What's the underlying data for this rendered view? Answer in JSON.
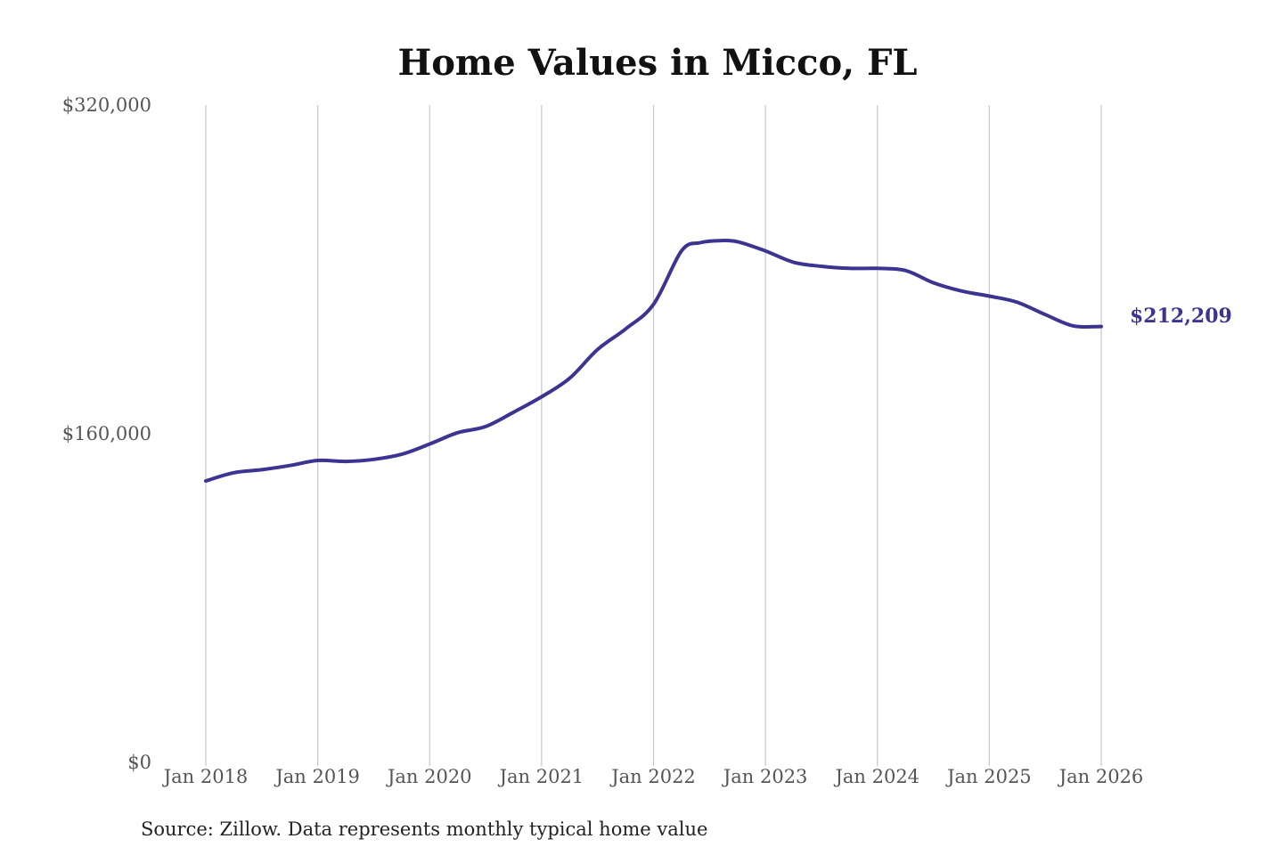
{
  "chart_data": {
    "type": "line",
    "title": "Home Values in Micco, FL",
    "source": "Source: Zillow. Data represents monthly typical home value",
    "end_label": "$212,209",
    "line_color": "#3b3491",
    "grid": "vertical",
    "ylim": [
      0,
      320000
    ],
    "y_ticks": [
      {
        "value": 0,
        "label": "$0"
      },
      {
        "value": 160000,
        "label": "$160,000"
      },
      {
        "value": 320000,
        "label": "$320,000"
      }
    ],
    "xlim": [
      "2018-01",
      "2026-01"
    ],
    "x_ticks": [
      {
        "date": "2018-01",
        "label": "Jan 2018"
      },
      {
        "date": "2019-01",
        "label": "Jan 2019"
      },
      {
        "date": "2020-01",
        "label": "Jan 2020"
      },
      {
        "date": "2021-01",
        "label": "Jan 2021"
      },
      {
        "date": "2022-01",
        "label": "Jan 2022"
      },
      {
        "date": "2023-01",
        "label": "Jan 2023"
      },
      {
        "date": "2024-01",
        "label": "Jan 2024"
      },
      {
        "date": "2025-01",
        "label": "Jan 2025"
      },
      {
        "date": "2026-01",
        "label": "Jan 2026"
      }
    ],
    "series": [
      {
        "points": [
          {
            "x": "2018-01",
            "y": 137000
          },
          {
            "x": "2018-04",
            "y": 141000
          },
          {
            "x": "2018-07",
            "y": 142500
          },
          {
            "x": "2018-10",
            "y": 144500
          },
          {
            "x": "2019-01",
            "y": 147000
          },
          {
            "x": "2019-04",
            "y": 146500
          },
          {
            "x": "2019-07",
            "y": 147500
          },
          {
            "x": "2019-10",
            "y": 150000
          },
          {
            "x": "2020-01",
            "y": 155000
          },
          {
            "x": "2020-04",
            "y": 160500
          },
          {
            "x": "2020-07",
            "y": 163500
          },
          {
            "x": "2020-10",
            "y": 170500
          },
          {
            "x": "2021-01",
            "y": 178000
          },
          {
            "x": "2021-04",
            "y": 187000
          },
          {
            "x": "2021-07",
            "y": 201000
          },
          {
            "x": "2021-10",
            "y": 211000
          },
          {
            "x": "2022-01",
            "y": 223000
          },
          {
            "x": "2022-04",
            "y": 249000
          },
          {
            "x": "2022-06",
            "y": 253000
          },
          {
            "x": "2022-08",
            "y": 254000
          },
          {
            "x": "2022-10",
            "y": 253500
          },
          {
            "x": "2023-01",
            "y": 249000
          },
          {
            "x": "2023-04",
            "y": 243500
          },
          {
            "x": "2023-07",
            "y": 241500
          },
          {
            "x": "2023-10",
            "y": 240500
          },
          {
            "x": "2024-01",
            "y": 240500
          },
          {
            "x": "2024-04",
            "y": 239500
          },
          {
            "x": "2024-07",
            "y": 233500
          },
          {
            "x": "2024-10",
            "y": 229500
          },
          {
            "x": "2025-01",
            "y": 227000
          },
          {
            "x": "2025-04",
            "y": 224000
          },
          {
            "x": "2025-07",
            "y": 218000
          },
          {
            "x": "2025-10",
            "y": 212500
          },
          {
            "x": "2026-01",
            "y": 212209
          }
        ]
      }
    ]
  }
}
